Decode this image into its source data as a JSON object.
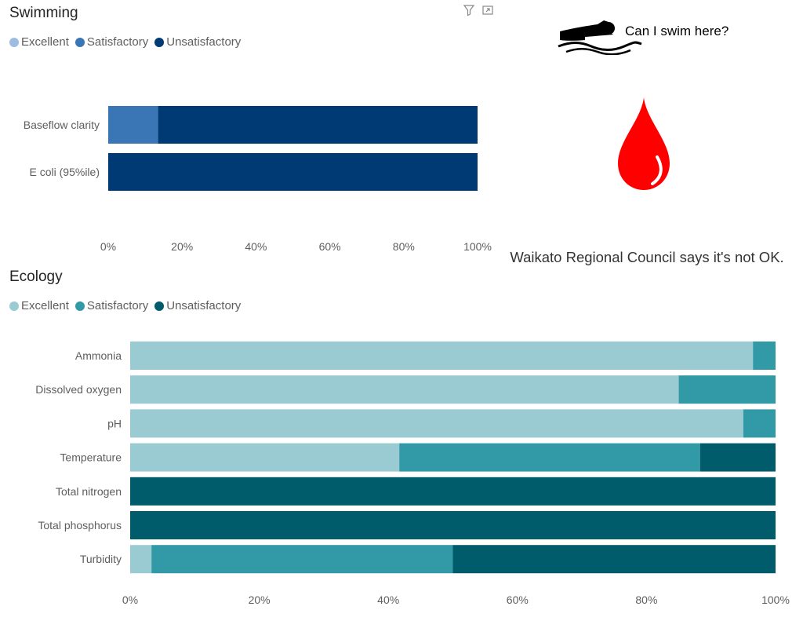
{
  "swim_card": {
    "question": "Can I swim here?",
    "verdict": "Waikato Regional Council says it's not OK.",
    "icons": [
      "swimmer-icon",
      "blood-drop-icon"
    ],
    "toolbar": [
      "filter-icon",
      "focus-mode-icon"
    ]
  },
  "chart_data": [
    {
      "type": "bar",
      "orientation": "horizontal",
      "stacked": "100%",
      "title": "Swimming",
      "legend_position": "top-left",
      "categories": [
        "Baseflow clarity",
        "E coli (95%ile)"
      ],
      "series": [
        {
          "name": "Excellent",
          "color": "#9dbde0",
          "values": [
            0,
            0
          ]
        },
        {
          "name": "Satisfactory",
          "color": "#3a75b6",
          "values": [
            13.5,
            0
          ]
        },
        {
          "name": "Unsatisfactory",
          "color": "#003a74",
          "values": [
            86.5,
            100
          ]
        }
      ],
      "xlim": [
        0,
        100
      ],
      "xticks": [
        "0%",
        "20%",
        "40%",
        "60%",
        "80%",
        "100%"
      ],
      "grid": false
    },
    {
      "type": "bar",
      "orientation": "horizontal",
      "stacked": "100%",
      "title": "Ecology",
      "legend_position": "top-left",
      "categories": [
        "Ammonia",
        "Dissolved oxygen",
        "pH",
        "Temperature",
        "Total nitrogen",
        "Total phosphorus",
        "Turbidity"
      ],
      "series": [
        {
          "name": "Excellent",
          "color": "#9acbd3",
          "values": [
            96.5,
            85,
            95,
            41.7,
            0,
            0,
            3.3
          ]
        },
        {
          "name": "Satisfactory",
          "color": "#329aa7",
          "values": [
            3.5,
            15,
            5,
            46.6,
            0,
            0,
            46.7
          ]
        },
        {
          "name": "Unsatisfactory",
          "color": "#005c6a",
          "values": [
            0,
            0,
            0,
            11.7,
            100,
            100,
            50
          ]
        }
      ],
      "xlim": [
        0,
        100
      ],
      "xticks": [
        "0%",
        "20%",
        "40%",
        "60%",
        "80%",
        "100%"
      ],
      "grid": false
    }
  ]
}
